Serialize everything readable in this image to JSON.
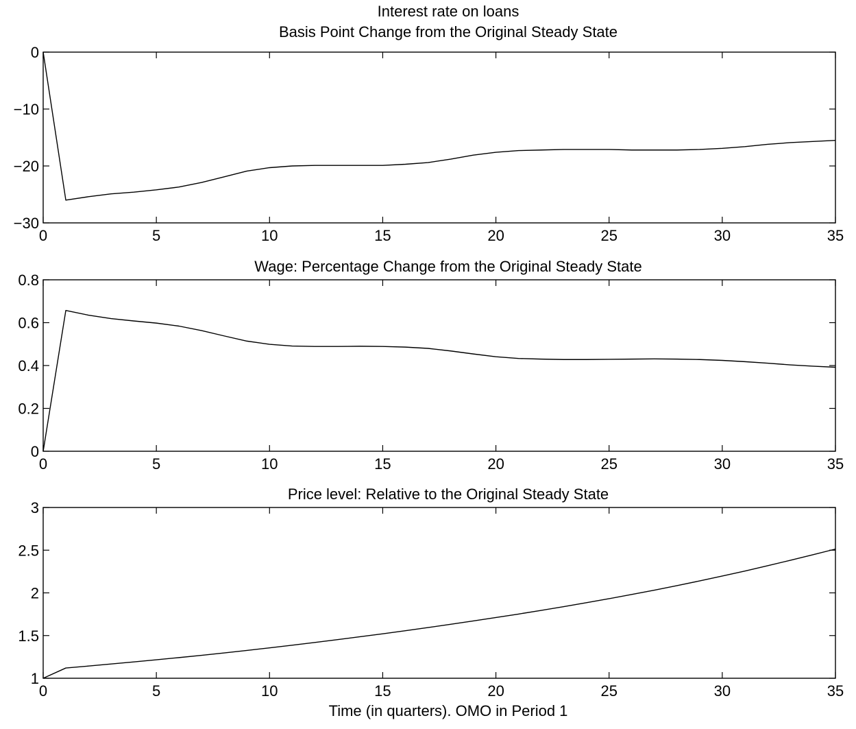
{
  "chart_data": [
    {
      "type": "line",
      "title": "Interest rate on loans",
      "subtitle": "Basis Point Change from the Original Steady State",
      "xlabel": "",
      "ylabel": "",
      "xlim": [
        0,
        35
      ],
      "ylim": [
        -30,
        0
      ],
      "xticks": [
        0,
        5,
        10,
        15,
        20,
        25,
        30,
        35
      ],
      "yticks": [
        -30,
        -20,
        -10,
        0
      ],
      "grid": false,
      "series": [
        {
          "x": [
            0,
            1,
            2,
            3,
            4,
            5,
            6,
            7,
            8,
            9,
            10,
            11,
            12,
            13,
            14,
            15,
            16,
            17,
            18,
            19,
            20,
            21,
            22,
            23,
            24,
            25,
            26,
            27,
            28,
            29,
            30,
            31,
            32,
            33,
            34,
            35
          ],
          "values": [
            0,
            -26.0,
            -25.4,
            -24.9,
            -24.6,
            -24.2,
            -23.7,
            -22.9,
            -21.9,
            -20.9,
            -20.3,
            -20.0,
            -19.9,
            -19.9,
            -19.9,
            -19.9,
            -19.7,
            -19.4,
            -18.8,
            -18.1,
            -17.6,
            -17.3,
            -17.2,
            -17.1,
            -17.1,
            -17.1,
            -17.2,
            -17.2,
            -17.2,
            -17.1,
            -16.9,
            -16.6,
            -16.2,
            -15.9,
            -15.7,
            -15.5
          ],
          "color": "#000000"
        }
      ]
    },
    {
      "type": "line",
      "title": "Wage: Percentage Change from the Original Steady State",
      "xlabel": "",
      "ylabel": "",
      "xlim": [
        0,
        35
      ],
      "ylim": [
        0,
        0.8
      ],
      "xticks": [
        0,
        5,
        10,
        15,
        20,
        25,
        30,
        35
      ],
      "yticks": [
        0,
        0.2,
        0.4,
        0.6,
        0.8
      ],
      "grid": false,
      "series": [
        {
          "x": [
            0,
            1,
            2,
            3,
            4,
            5,
            6,
            7,
            8,
            9,
            10,
            11,
            12,
            13,
            14,
            15,
            16,
            17,
            18,
            19,
            20,
            21,
            22,
            23,
            24,
            25,
            26,
            27,
            28,
            29,
            30,
            31,
            32,
            33,
            34,
            35
          ],
          "values": [
            0,
            0.657,
            0.635,
            0.619,
            0.608,
            0.598,
            0.584,
            0.563,
            0.538,
            0.514,
            0.499,
            0.491,
            0.489,
            0.489,
            0.49,
            0.489,
            0.486,
            0.48,
            0.468,
            0.454,
            0.441,
            0.433,
            0.43,
            0.428,
            0.428,
            0.429,
            0.43,
            0.431,
            0.43,
            0.428,
            0.424,
            0.418,
            0.411,
            0.403,
            0.397,
            0.392
          ],
          "color": "#000000"
        }
      ]
    },
    {
      "type": "line",
      "title": "Price level: Relative to the Original Steady State",
      "xlabel": "Time (in quarters). OMO in Period 1",
      "ylabel": "",
      "xlim": [
        0,
        35
      ],
      "ylim": [
        1,
        3
      ],
      "xticks": [
        0,
        5,
        10,
        15,
        20,
        25,
        30,
        35
      ],
      "yticks": [
        1,
        1.5,
        2,
        2.5,
        3
      ],
      "grid": false,
      "series": [
        {
          "x": [
            0,
            1,
            2,
            3,
            4,
            5,
            6,
            7,
            8,
            9,
            10,
            11,
            12,
            13,
            14,
            15,
            16,
            17,
            18,
            19,
            20,
            21,
            22,
            23,
            24,
            25,
            26,
            27,
            28,
            29,
            30,
            31,
            32,
            33,
            34,
            35
          ],
          "values": [
            1.0,
            1.12,
            1.143,
            1.167,
            1.191,
            1.216,
            1.242,
            1.269,
            1.297,
            1.326,
            1.356,
            1.387,
            1.419,
            1.452,
            1.486,
            1.521,
            1.557,
            1.594,
            1.632,
            1.671,
            1.711,
            1.752,
            1.795,
            1.839,
            1.885,
            1.932,
            1.981,
            2.032,
            2.085,
            2.14,
            2.197,
            2.256,
            2.318,
            2.381,
            2.446,
            2.513
          ],
          "color": "#000000"
        }
      ]
    }
  ]
}
